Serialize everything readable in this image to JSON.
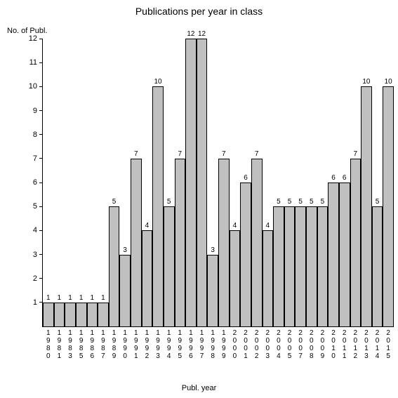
{
  "chart": {
    "type": "bar",
    "title": "Publications per year in class",
    "title_fontsize": 14,
    "ylabel": "No. of Publ.",
    "xlabel": "Publ. year",
    "label_fontsize": 11,
    "background_color": "#ffffff",
    "bar_color": "#c0c0c0",
    "bar_border_color": "#000000",
    "axis_color": "#000000",
    "text_color": "#000000",
    "ylim": [
      0,
      12
    ],
    "yticks": [
      0,
      1,
      2,
      3,
      4,
      5,
      6,
      7,
      8,
      9,
      10,
      11,
      12
    ],
    "categories": [
      "1980",
      "1981",
      "1983",
      "1985",
      "1986",
      "1987",
      "1989",
      "1990",
      "1991",
      "1992",
      "1993",
      "1994",
      "1995",
      "1996",
      "1997",
      "1998",
      "1999",
      "2000",
      "2001",
      "2002",
      "2003",
      "2004",
      "2005",
      "2007",
      "2008",
      "2009",
      "2010",
      "2011",
      "2012",
      "2013",
      "2014",
      "2015"
    ],
    "values": [
      1,
      1,
      1,
      1,
      1,
      1,
      5,
      3,
      7,
      4,
      10,
      5,
      7,
      12,
      12,
      3,
      7,
      4,
      6,
      7,
      4,
      5,
      5,
      5,
      5,
      5,
      6,
      6,
      7,
      10,
      5,
      10
    ],
    "bar_value_fontsize": 10,
    "tick_fontsize": 10
  }
}
